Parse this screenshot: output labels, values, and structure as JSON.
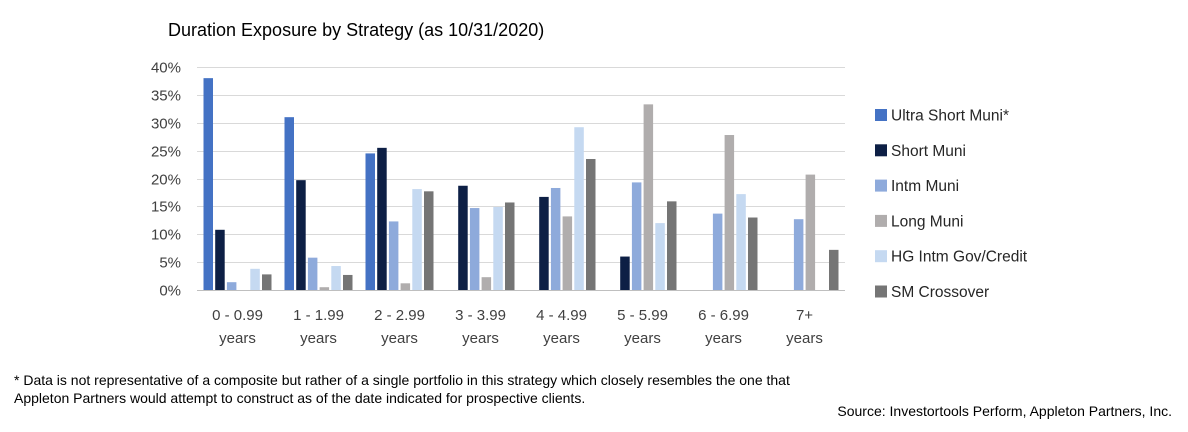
{
  "chart_data": {
    "type": "bar",
    "title": "Duration Exposure by Strategy (as 10/31/2020)",
    "categories": [
      [
        "0 - 0.99",
        "years"
      ],
      [
        "1 - 1.99",
        "years"
      ],
      [
        "2 - 2.99",
        "years"
      ],
      [
        "3 - 3.99",
        "years"
      ],
      [
        "4 - 4.99",
        "years"
      ],
      [
        "5 - 5.99",
        "years"
      ],
      [
        "6 - 6.99",
        "years"
      ],
      [
        "7+",
        "years"
      ]
    ],
    "series": [
      {
        "name": "Ultra Short Muni*",
        "color": "#4472c4",
        "values": [
          38,
          31,
          24.5,
          0,
          0,
          0,
          0,
          0
        ]
      },
      {
        "name": "Short Muni",
        "color": "#0d1f45",
        "values": [
          10.8,
          19.7,
          25.5,
          18.7,
          16.7,
          6.0,
          0,
          0
        ]
      },
      {
        "name": "Intm Muni",
        "color": "#8eaadb",
        "values": [
          1.4,
          5.8,
          12.3,
          14.7,
          18.3,
          19.3,
          13.7,
          12.7
        ]
      },
      {
        "name": "Long Muni",
        "color": "#b0adad",
        "values": [
          0,
          0.5,
          1.2,
          2.3,
          13.2,
          33.3,
          27.8,
          20.7
        ]
      },
      {
        "name": "HG Intm Gov/Credit",
        "color": "#c5d9f1",
        "values": [
          3.8,
          4.3,
          18.1,
          14.9,
          29.2,
          12.0,
          17.2,
          0
        ]
      },
      {
        "name": "SM Crossover",
        "color": "#757575",
        "values": [
          2.8,
          2.7,
          17.7,
          15.7,
          23.5,
          15.9,
          13.0,
          7.2
        ]
      }
    ],
    "ylim": [
      0,
      40
    ],
    "yticks": [
      "0%",
      "5%",
      "10%",
      "15%",
      "20%",
      "25%",
      "30%",
      "35%",
      "40%"
    ],
    "grid": true,
    "legend_position": "right"
  },
  "footnote": "* Data is not representative of a composite but rather of a single portfolio in this strategy which closely resembles the one that Appleton Partners would attempt to construct as of the date indicated for prospective clients.",
  "source": "Source: Investortools Perform, Appleton Partners, Inc."
}
